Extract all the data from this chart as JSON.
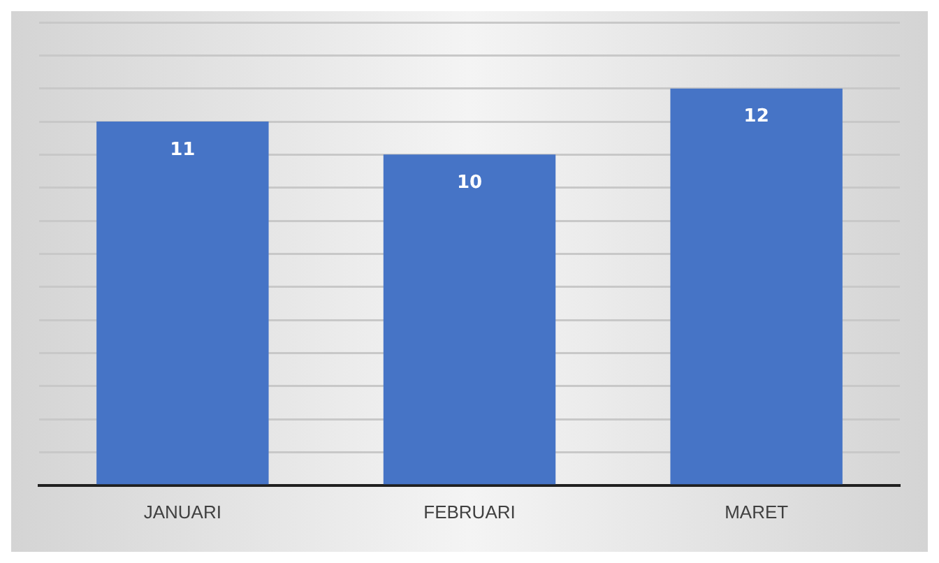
{
  "chart_data": {
    "type": "bar",
    "categories": [
      "JANUARI",
      "FEBRUARI",
      "MARET"
    ],
    "values": [
      11,
      10,
      12
    ],
    "color": "#4674c6",
    "data_labels": true,
    "grid": "y",
    "tick_labels": "x",
    "legend": false,
    "ylim": [
      0,
      14
    ],
    "yticks": [
      {
        "value": 0,
        "label": null
      },
      {
        "value": 1,
        "label": null
      },
      {
        "value": 2,
        "label": null
      },
      {
        "value": 3,
        "label": null
      },
      {
        "value": 4,
        "label": null
      },
      {
        "value": 5,
        "label": null
      },
      {
        "value": 6,
        "label": null
      },
      {
        "value": 7,
        "label": null
      },
      {
        "value": 8,
        "label": null
      },
      {
        "value": 9,
        "label": null
      },
      {
        "value": 10,
        "label": null
      },
      {
        "value": 11,
        "label": null
      },
      {
        "value": 12,
        "label": null
      },
      {
        "value": 13,
        "label": null
      },
      {
        "value": 14,
        "label": null
      }
    ]
  }
}
